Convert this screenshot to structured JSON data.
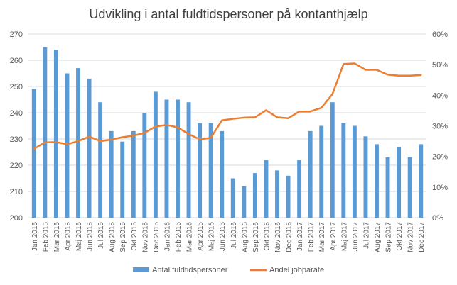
{
  "chart_data": {
    "type": "bar+line",
    "title": "Udvikling i antal fuldtidspersoner på kontanthjælp",
    "categories": [
      "Jan 2015",
      "Feb 2015",
      "Mar 2015",
      "Apr 2015",
      "Maj 2015",
      "Jun 2015",
      "Jul 2015",
      "Aug 2015",
      "Sep 2015",
      "Okt 2015",
      "Nov 2015",
      "Dec 2015",
      "Jan 2016",
      "Feb 2016",
      "Mar 2016",
      "Apr 2016",
      "Maj 2016",
      "Jun 2016",
      "Jul 2016",
      "Aug 2016",
      "Sep 2016",
      "Okt 2016",
      "Nov 2016",
      "Dec 2016",
      "Jan 2017",
      "Feb 2017",
      "Mar 2017",
      "Apr 2017",
      "Maj 2017",
      "Jun 2017",
      "Jul 2017",
      "Aug 2017",
      "Sep 2017",
      "Okt 2017",
      "Nov 2017",
      "Dec 2017"
    ],
    "series": [
      {
        "name": "Antal fuldtidspersoner",
        "type": "bar",
        "axis": "left",
        "color": "#5b9bd5",
        "values": [
          249,
          265,
          264,
          255,
          257,
          253,
          244,
          233,
          229,
          233,
          240,
          248,
          245,
          245,
          244,
          236,
          236,
          233,
          215,
          212,
          217,
          222,
          218,
          216,
          222,
          233,
          235,
          244,
          236,
          235,
          231,
          228,
          223,
          227,
          223,
          228
        ]
      },
      {
        "name": "Andel jobparate",
        "type": "line",
        "axis": "right",
        "color": "#ed7d31",
        "values": [
          22.5,
          24.6,
          24.7,
          24.0,
          25.0,
          26.5,
          25.0,
          25.5,
          26.3,
          26.8,
          27.7,
          29.8,
          30.3,
          29.5,
          27.3,
          25.6,
          26.1,
          31.8,
          32.3,
          32.7,
          32.8,
          35.1,
          32.8,
          32.5,
          34.7,
          34.7,
          35.9,
          40.4,
          50.2,
          50.4,
          48.3,
          48.3,
          46.7,
          46.4,
          46.4,
          46.6
        ]
      }
    ],
    "y_left": {
      "min": 200,
      "max": 270,
      "ticks": [
        "200",
        "210",
        "220",
        "230",
        "240",
        "250",
        "260",
        "270"
      ]
    },
    "y_right": {
      "min": 0,
      "max": 60,
      "ticks": [
        "0%",
        "10%",
        "20%",
        "30%",
        "40%",
        "50%",
        "60%"
      ]
    },
    "grid": true,
    "legend_position": "bottom"
  }
}
